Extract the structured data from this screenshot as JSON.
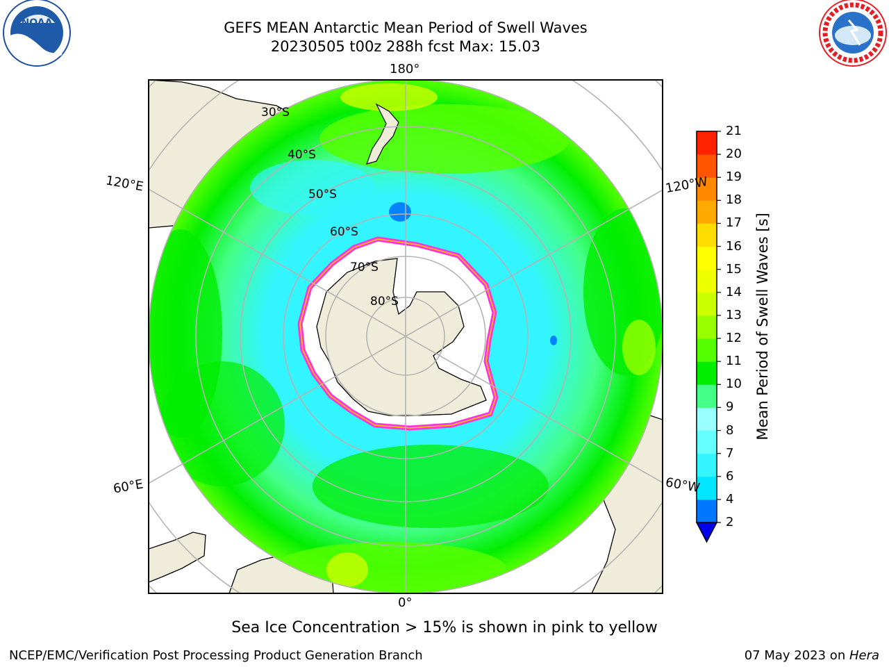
{
  "title": {
    "line1": "GEFS MEAN Antarctic Mean Period of Swell Waves",
    "line2": "20230505 t00z 288h fcst   Max: 15.03"
  },
  "logos": {
    "left": "noaa-logo",
    "right": "nws-logo",
    "nws_ring_text": "NATIONAL WEATHER SERVICE"
  },
  "map": {
    "projection": "south-polar-stereographic",
    "land_color": "#efedd9",
    "ice_color": "#ffffff",
    "lon_labels": {
      "top": "180°",
      "bottom": "0°",
      "upper_left": "120°E",
      "upper_right": "120°W",
      "lower_left": "60°E",
      "lower_right": "60°W"
    },
    "lat_labels": [
      "30°S",
      "40°S",
      "50°S",
      "60°S",
      "70°S",
      "80°S"
    ]
  },
  "colorbar": {
    "title": "Mean Period of Swell Waves [s]",
    "ticks": [
      "2",
      "4",
      "6",
      "7",
      "8",
      "9",
      "10",
      "11",
      "12",
      "13",
      "14",
      "15",
      "16",
      "17",
      "18",
      "19",
      "20",
      "21"
    ],
    "colors": [
      "#0077ff",
      "#00e6ff",
      "#33f5ff",
      "#66ffff",
      "#99ffff",
      "#44ff88",
      "#00ee00",
      "#55ff00",
      "#99ff00",
      "#ccff00",
      "#eeff00",
      "#ffff00",
      "#ffdd00",
      "#ffaa00",
      "#ff8800",
      "#ff5500",
      "#ff2200",
      "#ff0000"
    ],
    "under_color": "#0000ee"
  },
  "caption": "Sea Ice Concentration > 15% is shown in pink to yellow",
  "footer": {
    "left": "NCEP/EMC/Verification Post Processing Product Generation Branch",
    "right_date": "07 May 2023 on ",
    "right_host": "Hera"
  }
}
